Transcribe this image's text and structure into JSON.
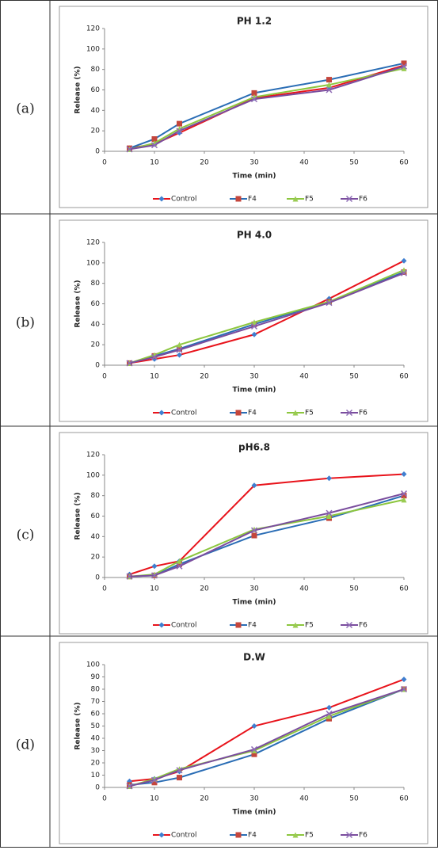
{
  "chart_data": [
    {
      "type": "line",
      "label": "(a)",
      "title": "PH 1.2",
      "title_color": "#e8131b",
      "x_label": "Time (min)",
      "y_label": "Release (%)",
      "x": [
        5,
        10,
        15,
        30,
        45,
        60
      ],
      "xlim": [
        0,
        60
      ],
      "xticks": [
        0,
        10,
        20,
        30,
        40,
        50,
        60
      ],
      "ylim": [
        0,
        120
      ],
      "yticks": [
        0,
        20,
        40,
        60,
        80,
        100,
        120
      ],
      "series": [
        {
          "name": "Control",
          "color": "#e8131b",
          "marker": "diamond",
          "marker_color": "#3f7fd0",
          "values": [
            3,
            7,
            18,
            52,
            62,
            84
          ]
        },
        {
          "name": "F4",
          "color": "#2a6db5",
          "marker": "square",
          "marker_color": "#c4463c",
          "values": [
            3,
            12,
            27,
            57,
            70,
            86
          ]
        },
        {
          "name": "F5",
          "color": "#8cc63e",
          "marker": "triangle",
          "marker_color": "#9acb52",
          "values": [
            2,
            8,
            22,
            53,
            65,
            81
          ]
        },
        {
          "name": "F6",
          "color": "#7a4d9e",
          "marker": "x",
          "marker_color": "#8e6bb4",
          "values": [
            2,
            6,
            20,
            51,
            60,
            83
          ]
        }
      ]
    },
    {
      "type": "line",
      "label": "(b)",
      "title": "PH 4.0",
      "title_color": "#e8131b",
      "x_label": "Time (min)",
      "y_label": "Release (%)",
      "x": [
        5,
        10,
        15,
        30,
        45,
        60
      ],
      "xlim": [
        0,
        60
      ],
      "xticks": [
        0,
        10,
        20,
        30,
        40,
        50,
        60
      ],
      "ylim": [
        0,
        120
      ],
      "yticks": [
        0,
        20,
        40,
        60,
        80,
        100,
        120
      ],
      "series": [
        {
          "name": "Control",
          "color": "#e8131b",
          "marker": "diamond",
          "marker_color": "#3f7fd0",
          "values": [
            2,
            6,
            10,
            30,
            65,
            102
          ]
        },
        {
          "name": "F4",
          "color": "#2a6db5",
          "marker": "square",
          "marker_color": "#c4463c",
          "values": [
            2,
            9,
            16,
            40,
            62,
            91
          ]
        },
        {
          "name": "F5",
          "color": "#8cc63e",
          "marker": "triangle",
          "marker_color": "#9acb52",
          "values": [
            2,
            10,
            20,
            42,
            62,
            93
          ]
        },
        {
          "name": "F6",
          "color": "#7a4d9e",
          "marker": "x",
          "marker_color": "#8e6bb4",
          "values": [
            2,
            8,
            15,
            38,
            61,
            90
          ]
        }
      ]
    },
    {
      "type": "line",
      "label": "(c)",
      "title": "pH6.8",
      "title_color": "#1f3a75",
      "x_label": "Time (min)",
      "y_label": "Release (%)",
      "x": [
        5,
        10,
        15,
        30,
        45,
        60
      ],
      "xlim": [
        0,
        60
      ],
      "xticks": [
        0,
        10,
        20,
        30,
        40,
        50,
        60
      ],
      "ylim": [
        0,
        120
      ],
      "yticks": [
        0,
        20,
        40,
        60,
        80,
        100,
        120
      ],
      "series": [
        {
          "name": "Control",
          "color": "#e8131b",
          "marker": "diamond",
          "marker_color": "#3f7fd0",
          "values": [
            3,
            11,
            16,
            90,
            97,
            101
          ]
        },
        {
          "name": "F4",
          "color": "#2a6db5",
          "marker": "square",
          "marker_color": "#c4463c",
          "values": [
            1,
            2,
            13,
            41,
            58,
            80
          ]
        },
        {
          "name": "F5",
          "color": "#8cc63e",
          "marker": "triangle",
          "marker_color": "#9acb52",
          "values": [
            1,
            3,
            16,
            47,
            60,
            76
          ]
        },
        {
          "name": "F6",
          "color": "#7a4d9e",
          "marker": "x",
          "marker_color": "#8e6bb4",
          "values": [
            1,
            2,
            11,
            46,
            63,
            82
          ]
        }
      ]
    },
    {
      "type": "line",
      "label": "(d)",
      "title": "D.W",
      "title_color": "#1f3a75",
      "x_label": "Time (min)",
      "y_label": "Release (%)",
      "x": [
        5,
        10,
        15,
        30,
        45,
        60
      ],
      "xlim": [
        0,
        60
      ],
      "xticks": [
        0,
        10,
        20,
        30,
        40,
        50,
        60
      ],
      "ylim": [
        0,
        100
      ],
      "yticks": [
        0,
        10,
        20,
        30,
        40,
        50,
        60,
        70,
        80,
        90,
        100
      ],
      "series": [
        {
          "name": "Control",
          "color": "#e8131b",
          "marker": "diamond",
          "marker_color": "#3f7fd0",
          "values": [
            5,
            7,
            13,
            50,
            65,
            88
          ]
        },
        {
          "name": "F4",
          "color": "#2a6db5",
          "marker": "square",
          "marker_color": "#c4463c",
          "values": [
            2,
            4,
            8,
            27,
            56,
            80
          ]
        },
        {
          "name": "F5",
          "color": "#8cc63e",
          "marker": "triangle",
          "marker_color": "#9acb52",
          "values": [
            1,
            7,
            15,
            30,
            58,
            80
          ]
        },
        {
          "name": "F6",
          "color": "#7a4d9e",
          "marker": "x",
          "marker_color": "#8e6bb4",
          "values": [
            1,
            6,
            14,
            31,
            60,
            80
          ]
        }
      ]
    }
  ]
}
